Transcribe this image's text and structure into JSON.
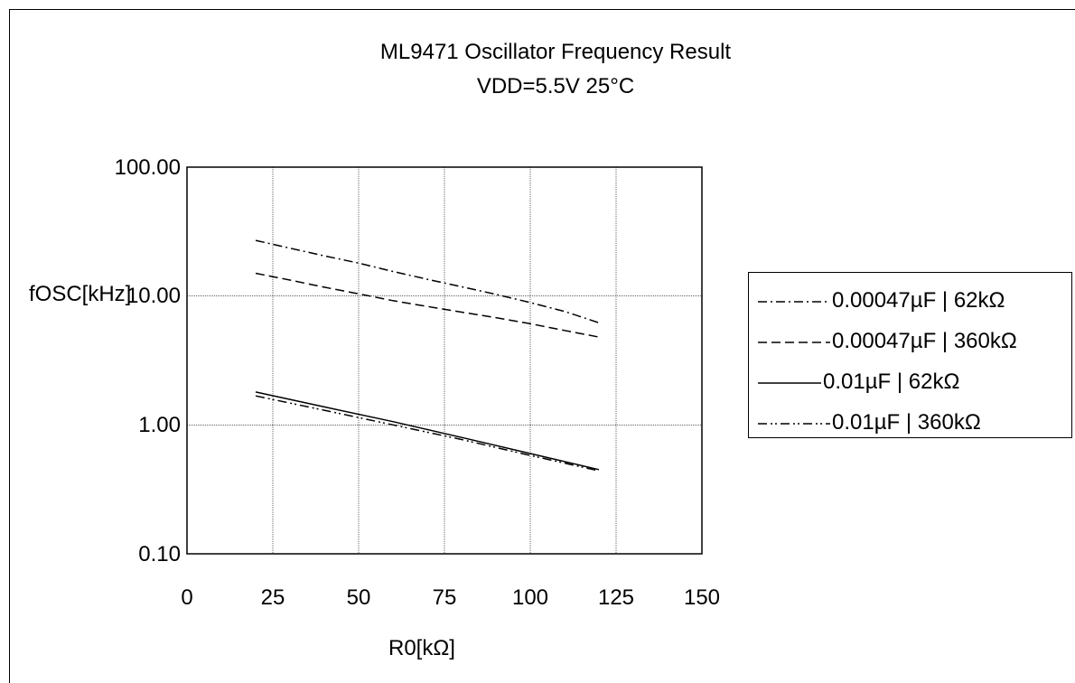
{
  "chart_data": {
    "type": "line",
    "title": "ML9471 Oscillator Frequency Result",
    "subtitle": "VDD=5.5V 25°C",
    "xlabel": "R0[kΩ]",
    "ylabel": "fOSC[kHz]",
    "xlim": [
      0,
      150
    ],
    "ylim": [
      0.1,
      100
    ],
    "yscale": "log",
    "x_ticks": [
      "0",
      "25",
      "50",
      "75",
      "100",
      "125",
      "150"
    ],
    "y_ticks": [
      "100.00",
      "10.00",
      "1.00",
      "0.10"
    ],
    "grid": true,
    "legend_position": "right",
    "series": [
      {
        "name": "0.00047µF | 62kΩ",
        "dash": "dash-dot",
        "x": [
          20,
          30,
          40,
          50,
          60,
          70,
          80,
          90,
          100,
          110,
          120
        ],
        "y": [
          27,
          23.5,
          20.5,
          18,
          15.5,
          13.5,
          11.8,
          10.3,
          8.9,
          7.6,
          6.2
        ]
      },
      {
        "name": "0.00047µF | 360kΩ",
        "dash": "dash",
        "x": [
          20,
          30,
          40,
          50,
          60,
          70,
          80,
          90,
          100,
          110,
          120
        ],
        "y": [
          15,
          13.3,
          11.7,
          10.4,
          9.2,
          8.3,
          7.5,
          6.8,
          6.1,
          5.4,
          4.8
        ]
      },
      {
        "name": "0.01µF | 62kΩ",
        "dash": "solid",
        "x": [
          20,
          40,
          60,
          80,
          100,
          120
        ],
        "y": [
          1.8,
          1.38,
          1.06,
          0.8,
          0.6,
          0.45
        ]
      },
      {
        "name": "0.01µF | 360kΩ",
        "dash": "dash-dot-dot",
        "x": [
          20,
          40,
          60,
          80,
          100,
          120
        ],
        "y": [
          1.68,
          1.3,
          1.0,
          0.77,
          0.58,
          0.44
        ]
      }
    ]
  }
}
